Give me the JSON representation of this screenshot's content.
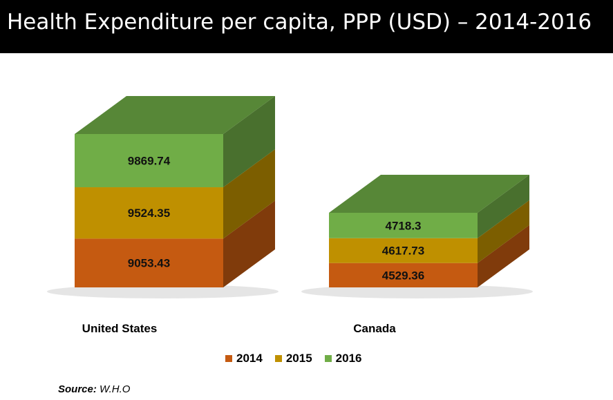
{
  "chart_data": {
    "type": "bar",
    "title": "Health Expenditure per capita, PPP (USD) – 2014-2016",
    "categories": [
      "United States",
      "Canada"
    ],
    "series": [
      {
        "name": "2014",
        "values": [
          9053.43,
          4529.36
        ],
        "color": "#c55a11"
      },
      {
        "name": "2015",
        "values": [
          9524.35,
          4617.73
        ],
        "color": "#bf9000"
      },
      {
        "name": "2016",
        "values": [
          9869.74,
          4718.3
        ],
        "color": "#70ad47"
      }
    ],
    "value_labels": [
      [
        "9053.43",
        "4529.36"
      ],
      [
        "9524.35",
        "4617.73"
      ],
      [
        "9869.74",
        "4718.3"
      ]
    ],
    "stacked": true,
    "style": "3d",
    "legend_position": "bottom",
    "grid": false
  },
  "source": {
    "label": "Source:",
    "value": "W.H.O"
  }
}
